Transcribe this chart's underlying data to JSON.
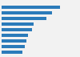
{
  "values": [
    13.5,
    11.8,
    10.5,
    7.5,
    7.0,
    6.2,
    5.8,
    5.4,
    4.8
  ],
  "bar_color": "#2b7bba",
  "background_color": "#f2f2f2",
  "xlim": [
    0,
    16
  ],
  "bar_height": 0.55,
  "n_bars": 9
}
